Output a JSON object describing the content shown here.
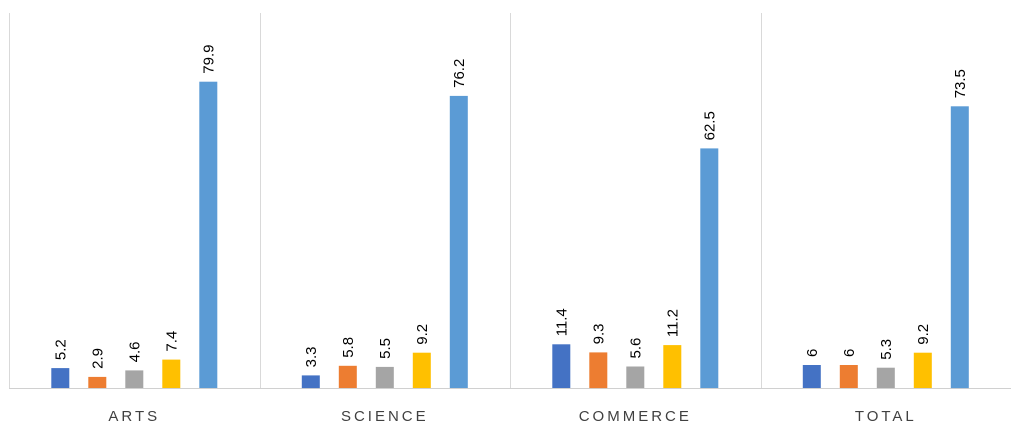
{
  "chart_data": {
    "type": "bar",
    "categories": [
      "ARTS",
      "SCIENCE",
      "COMMERCE",
      "TOTAL"
    ],
    "series": [
      {
        "values": [
          5.2,
          3.3,
          11.4,
          6
        ],
        "color": "#4472C4"
      },
      {
        "values": [
          2.9,
          5.8,
          9.3,
          6
        ],
        "color": "#ED7D31"
      },
      {
        "values": [
          4.6,
          5.5,
          5.6,
          5.3
        ],
        "color": "#A5A5A5"
      },
      {
        "values": [
          7.4,
          9.2,
          11.2,
          9.2
        ],
        "color": "#FFC000"
      },
      {
        "values": [
          79.9,
          76.2,
          62.5,
          73.5
        ],
        "color": "#5B9BD5"
      }
    ],
    "value_labels": [
      [
        "5.2",
        "3.3",
        "11.4",
        "6"
      ],
      [
        "2.9",
        "5.8",
        "9.3",
        "6"
      ],
      [
        "4.6",
        "5.5",
        "5.6",
        "5.3"
      ],
      [
        "7.4",
        "9.2",
        "11.2",
        "9.2"
      ],
      [
        "79.9",
        "76.2",
        "62.5",
        "73.5"
      ]
    ],
    "ylim": [
      0,
      90
    ],
    "grid": "vertical category separators",
    "legend": "none",
    "title": "",
    "xlabel": "",
    "ylabel": ""
  }
}
